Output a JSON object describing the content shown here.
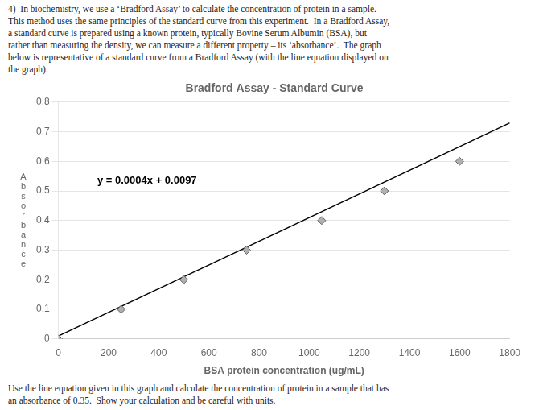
{
  "chart_data": {
    "type": "scatter",
    "title": "Bradford Assay - Standard Curve",
    "x_label": "BSA protein concentration (ug/mL)",
    "y_label": "Absorbance",
    "text_above": "4)  In biochemistry, we use a ‘Bradford Assay’ to calculate the concentration of protein in a sample.\nThis method uses the same principles of the standard curve from this experiment.  In a Bradford Assay,\na standard curve is prepared using a known protein, typically Bovine Serum Albumin (BSA), but\nrather than measuring the density, we can measure a different property – its ‘absorbance’.  The graph\nbelow is representative of a standard curve from a Bradford Assay (with the line equation displayed on\nthe graph).",
    "text_below": "Use the line equation given in this graph and calculate the concentration of protein in a sample that has\nan absorbance of 0.35.  Show your calculation and be careful with units.",
    "series": [
      {
        "type": "scatter",
        "marker": "diamond",
        "color": "#b0b0b0",
        "x": [
          0,
          250,
          500,
          750,
          1050,
          1300,
          1600
        ],
        "values": [
          0.0,
          0.1,
          0.2,
          0.3,
          0.4,
          0.5,
          0.6
        ]
      },
      {
        "type": "line",
        "line_style": "solid",
        "color": "#000000",
        "x": [
          0,
          1800
        ],
        "values": [
          0.0097,
          0.7297
        ]
      }
    ],
    "annotations": [
      {
        "text": "y = 0.0004x + 0.0097",
        "x": 155,
        "y": 0.535
      }
    ],
    "xlim": [
      0,
      1800
    ],
    "ylim": [
      0,
      0.8
    ],
    "xticks": [
      0,
      200,
      400,
      600,
      800,
      1000,
      1200,
      1400,
      1600,
      1800
    ],
    "yticks": [
      0,
      0.1,
      0.2,
      0.3,
      0.4,
      0.5,
      0.6,
      0.7,
      0.8
    ],
    "grid": "y"
  }
}
